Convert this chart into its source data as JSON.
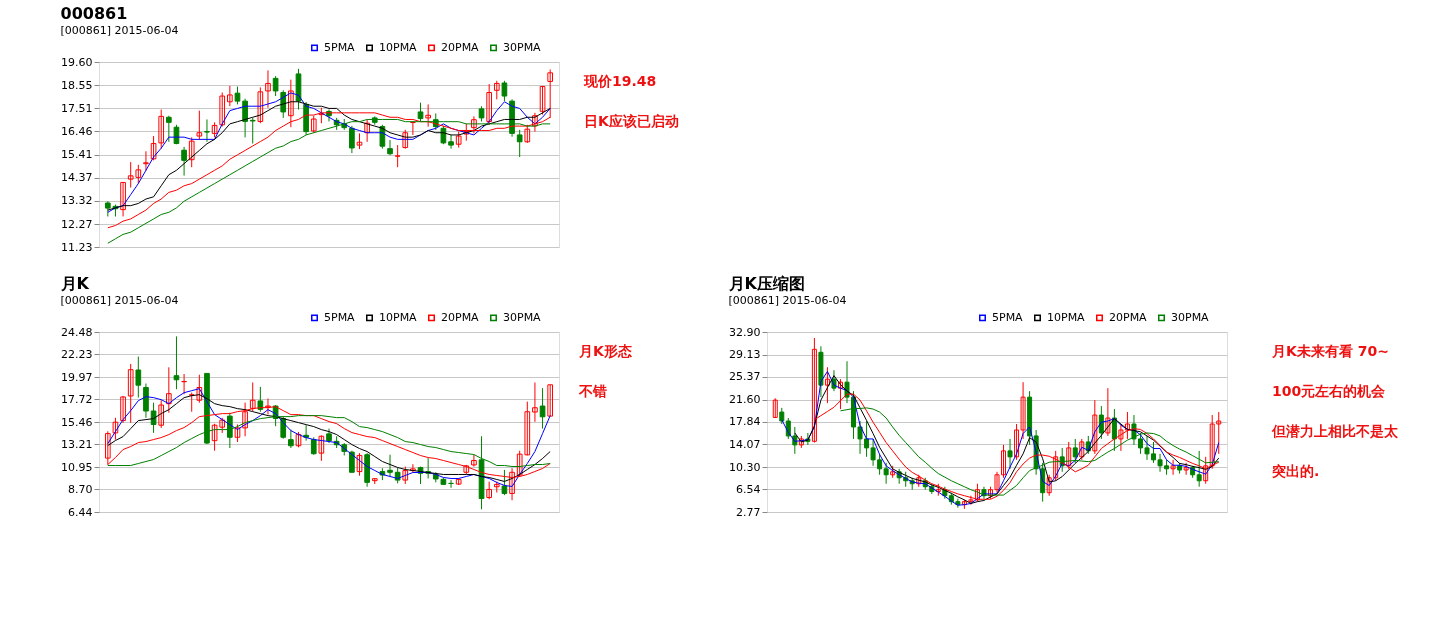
{
  "chart_data": [
    {
      "type": "candlestick",
      "title": "000861",
      "subtitle": "[000861] 2015-06-04",
      "annotations": [
        "现价19.48",
        "日K应该已启动"
      ],
      "categories": [
        null,
        null,
        null,
        null,
        null,
        null,
        null,
        null,
        null,
        null,
        null,
        null,
        null,
        null,
        null,
        null,
        null,
        null,
        null,
        null,
        null,
        null,
        null,
        null,
        null,
        null,
        null,
        null,
        null,
        null,
        null,
        null,
        null,
        null,
        null,
        null,
        null,
        null,
        null,
        null,
        null,
        null,
        null,
        null,
        null,
        null,
        null,
        null,
        null,
        null,
        null,
        null,
        null,
        null,
        null,
        null,
        null,
        null,
        null
      ],
      "ohlc": [
        [
          13.22,
          13.3,
          12.61,
          12.99
        ],
        [
          13.07,
          13.15,
          12.61,
          12.96
        ],
        [
          12.92,
          14.15,
          12.61,
          14.15
        ],
        [
          14.3,
          15.07,
          13.92,
          14.45
        ],
        [
          14.38,
          14.95,
          14.1,
          14.72
        ],
        [
          15.0,
          15.56,
          14.68,
          15.04
        ],
        [
          15.22,
          16.25,
          15.15,
          15.91
        ],
        [
          15.94,
          17.45,
          15.68,
          17.14
        ],
        [
          17.1,
          17.17,
          15.99,
          16.87
        ],
        [
          16.65,
          16.76,
          15.88,
          15.91
        ],
        [
          15.61,
          15.76,
          14.46,
          15.15
        ],
        [
          15.18,
          16.19,
          14.84,
          16.02
        ],
        [
          16.25,
          17.4,
          16.07,
          16.4
        ],
        [
          16.45,
          17.0,
          15.99,
          16.43
        ],
        [
          16.37,
          16.87,
          16.19,
          16.73
        ],
        [
          16.76,
          18.22,
          16.68,
          18.06
        ],
        [
          17.8,
          18.52,
          17.6,
          18.11
        ],
        [
          18.19,
          18.49,
          17.68,
          17.83
        ],
        [
          17.83,
          17.94,
          16.19,
          16.91
        ],
        [
          16.96,
          17.07,
          15.91,
          16.93
        ],
        [
          16.91,
          18.45,
          16.83,
          18.25
        ],
        [
          18.29,
          19.22,
          17.53,
          18.63
        ],
        [
          18.86,
          18.96,
          18.06,
          18.29
        ],
        [
          18.22,
          18.32,
          17.07,
          17.34
        ],
        [
          17.17,
          18.8,
          16.65,
          18.29
        ],
        [
          19.06,
          19.29,
          17.45,
          17.83
        ],
        [
          17.68,
          17.79,
          16.3,
          16.45
        ],
        [
          16.48,
          17.17,
          16.4,
          17.02
        ],
        [
          17.22,
          17.53,
          16.83,
          17.25
        ],
        [
          17.36,
          17.45,
          16.91,
          17.17
        ],
        [
          16.96,
          17.07,
          16.53,
          16.76
        ],
        [
          16.81,
          17.02,
          16.53,
          16.63
        ],
        [
          16.6,
          16.71,
          15.48,
          15.71
        ],
        [
          15.84,
          16.37,
          15.66,
          15.97
        ],
        [
          16.4,
          16.99,
          15.99,
          16.83
        ],
        [
          17.07,
          17.14,
          16.76,
          16.87
        ],
        [
          16.68,
          16.76,
          15.68,
          15.79
        ],
        [
          15.68,
          16.07,
          15.38,
          15.45
        ],
        [
          15.34,
          15.84,
          14.84,
          15.35
        ],
        [
          15.73,
          16.53,
          15.68,
          16.4
        ],
        [
          16.86,
          16.91,
          16.3,
          16.87
        ],
        [
          17.34,
          17.76,
          16.91,
          17.04
        ],
        [
          17.07,
          17.68,
          16.68,
          17.19
        ],
        [
          16.99,
          17.27,
          16.53,
          16.68
        ],
        [
          16.6,
          16.71,
          15.88,
          15.94
        ],
        [
          15.99,
          16.3,
          15.68,
          15.84
        ],
        [
          15.88,
          16.45,
          15.73,
          16.25
        ],
        [
          16.34,
          16.81,
          16.04,
          16.45
        ],
        [
          16.63,
          17.14,
          16.37,
          16.99
        ],
        [
          17.48,
          17.6,
          16.91,
          17.07
        ],
        [
          16.91,
          18.6,
          16.76,
          18.22
        ],
        [
          18.32,
          18.75,
          17.91,
          18.63
        ],
        [
          18.65,
          18.75,
          17.83,
          18.06
        ],
        [
          17.83,
          17.91,
          16.22,
          16.37
        ],
        [
          16.3,
          16.53,
          15.3,
          15.99
        ],
        [
          15.99,
          16.76,
          15.94,
          16.56
        ],
        [
          16.71,
          17.3,
          16.45,
          17.17
        ],
        [
          17.37,
          18.52,
          17.22,
          18.49
        ],
        [
          18.72,
          19.26,
          17.07,
          19.11
        ]
      ],
      "series": [
        {
          "name": "5PMA",
          "type": "line",
          "color": "#0000ff",
          "values": [
            12.8,
            13.0,
            13.1,
            13.6,
            14.1,
            14.7,
            15.3,
            15.7,
            16.2,
            16.2,
            16.2,
            16.1,
            16.1,
            16.1,
            16.1,
            16.8,
            17.4,
            17.5,
            17.6,
            17.6,
            17.6,
            17.7,
            17.8,
            18.0,
            18.2,
            18.1,
            17.6,
            17.5,
            17.3,
            17.1,
            16.9,
            16.8,
            16.6,
            16.5,
            16.4,
            16.4,
            16.4,
            16.2,
            16.1,
            16.1,
            16.1,
            16.3,
            16.5,
            16.6,
            16.8,
            16.6,
            16.5,
            16.4,
            16.3,
            16.6,
            16.9,
            17.4,
            17.8,
            17.6,
            17.5,
            17.1,
            16.8,
            17.1,
            17.5
          ]
        },
        {
          "name": "10PMA",
          "type": "line",
          "color": "#000000",
          "values": [
            12.9,
            13.0,
            13.1,
            13.1,
            13.2,
            13.4,
            13.5,
            14.0,
            14.5,
            14.7,
            15.0,
            15.3,
            15.6,
            15.9,
            16.1,
            16.4,
            16.8,
            16.9,
            17.0,
            17.1,
            17.2,
            17.4,
            17.6,
            17.7,
            17.8,
            17.8,
            17.7,
            17.6,
            17.6,
            17.5,
            17.5,
            17.2,
            17.0,
            16.9,
            16.8,
            16.7,
            16.6,
            16.4,
            16.3,
            16.2,
            16.2,
            16.3,
            16.5,
            16.4,
            16.4,
            16.3,
            16.3,
            16.4,
            16.5,
            16.7,
            16.8,
            16.9,
            17.0,
            17.0,
            17.0,
            17.1,
            17.1,
            17.3,
            17.5
          ]
        },
        {
          "name": "20PMA",
          "type": "line",
          "color": "#ff0000",
          "values": [
            12.1,
            12.2,
            12.4,
            12.5,
            12.7,
            12.9,
            13.2,
            13.4,
            13.7,
            13.8,
            14.0,
            14.1,
            14.3,
            14.5,
            14.7,
            14.9,
            15.2,
            15.4,
            15.6,
            15.8,
            16.0,
            16.2,
            16.5,
            16.7,
            16.9,
            17.0,
            17.2,
            17.2,
            17.3,
            17.3,
            17.3,
            17.3,
            17.3,
            17.3,
            17.3,
            17.3,
            17.2,
            17.1,
            17.1,
            17.0,
            17.0,
            16.9,
            16.9,
            16.8,
            16.7,
            16.6,
            16.5,
            16.5,
            16.5,
            16.5,
            16.5,
            16.6,
            16.6,
            16.7,
            16.7,
            16.7,
            16.8,
            16.9,
            17.1
          ]
        },
        {
          "name": "30PMA",
          "type": "line",
          "color": "#008000",
          "values": [
            11.4,
            11.6,
            11.8,
            11.9,
            12.1,
            12.3,
            12.5,
            12.7,
            12.8,
            13.0,
            13.3,
            13.5,
            13.7,
            13.9,
            14.1,
            14.3,
            14.5,
            14.7,
            14.9,
            15.1,
            15.3,
            15.5,
            15.7,
            15.8,
            16.0,
            16.1,
            16.3,
            16.4,
            16.5,
            16.6,
            16.7,
            16.8,
            16.9,
            16.9,
            17.0,
            17.0,
            17.0,
            17.0,
            17.0,
            16.9,
            16.9,
            16.9,
            16.9,
            16.9,
            16.9,
            16.9,
            16.9,
            16.8,
            16.8,
            16.8,
            16.8,
            16.8,
            16.8,
            16.8,
            16.8,
            16.7,
            16.7,
            16.8,
            16.8
          ]
        }
      ],
      "ylim": [
        11.23,
        19.6
      ],
      "yticks": [
        11.23,
        12.27,
        13.32,
        14.37,
        15.41,
        16.46,
        17.51,
        18.55,
        {
          "value": 19.6,
          "label": "19.60"
        }
      ],
      "grid": "y",
      "legend": "top right",
      "tick_labels": "y"
    },
    {
      "type": "candlestick",
      "title": "月K",
      "subtitle": "[000861] 2015-06-04",
      "annotations": [
        "月K形态",
        "不错"
      ],
      "categories": [
        null,
        null,
        null,
        null,
        null,
        null,
        null,
        null,
        null,
        null,
        null,
        null,
        null,
        null,
        null,
        null,
        null,
        null,
        null,
        null,
        null,
        null,
        null,
        null,
        null,
        null,
        null,
        null,
        null,
        null,
        null,
        null,
        null,
        null,
        null,
        null,
        null,
        null,
        null,
        null,
        null,
        null,
        null,
        null,
        null,
        null,
        null,
        null,
        null,
        null,
        null,
        null,
        null,
        null,
        null,
        null,
        null,
        null,
        null
      ],
      "ohlc": [
        [
          11.84,
          14.53,
          11.17,
          14.3
        ],
        [
          14.37,
          15.88,
          13.69,
          15.44
        ],
        [
          15.61,
          18.07,
          15.38,
          17.97
        ],
        [
          18.07,
          21.28,
          15.38,
          20.7
        ],
        [
          20.67,
          22.02,
          17.91,
          19.15
        ],
        [
          18.92,
          19.32,
          15.88,
          16.56
        ],
        [
          16.56,
          17.4,
          14.37,
          15.21
        ],
        [
          15.14,
          17.64,
          14.87,
          17.16
        ],
        [
          17.3,
          20.94,
          16.39,
          18.3
        ],
        [
          20.1,
          24.04,
          18.75,
          19.69
        ],
        [
          19.5,
          20.27,
          18.24,
          19.52
        ],
        [
          18.16,
          18.41,
          16.49,
          18.18
        ],
        [
          17.64,
          20.2,
          17.4,
          18.92
        ],
        [
          20.33,
          20.33,
          13.25,
          13.35
        ],
        [
          13.59,
          15.28,
          12.58,
          15.14
        ],
        [
          14.94,
          15.88,
          14.37,
          15.65
        ],
        [
          16.05,
          16.39,
          12.85,
          13.93
        ],
        [
          13.93,
          15.21,
          13.46,
          14.87
        ],
        [
          14.87,
          17.4,
          14.03,
          16.49
        ],
        [
          16.83,
          19.42,
          16.56,
          17.64
        ],
        [
          17.57,
          18.98,
          16.49,
          16.73
        ],
        [
          16.96,
          17.81,
          16.22,
          17.06
        ],
        [
          17.06,
          17.16,
          15.04,
          15.81
        ],
        [
          15.81,
          16.05,
          13.79,
          13.93
        ],
        [
          13.69,
          14.7,
          12.85,
          13.08
        ],
        [
          13.08,
          14.47,
          12.92,
          14.2
        ],
        [
          14.13,
          15.14,
          13.59,
          13.93
        ],
        [
          13.69,
          13.93,
          12.18,
          12.28
        ],
        [
          12.34,
          14.13,
          11.57,
          14.03
        ],
        [
          14.27,
          14.8,
          13.35,
          13.59
        ],
        [
          13.52,
          14.03,
          12.85,
          13.18
        ],
        [
          13.18,
          13.35,
          12.11,
          12.51
        ],
        [
          12.44,
          12.58,
          10.42,
          10.42
        ],
        [
          10.49,
          12.34,
          10.08,
          12.11
        ],
        [
          12.18,
          12.34,
          8.97,
          9.41
        ],
        [
          9.58,
          9.81,
          9.24,
          9.78
        ],
        [
          10.49,
          10.83,
          9.64,
          10.15
        ],
        [
          10.62,
          12.18,
          9.98,
          10.42
        ],
        [
          10.42,
          10.89,
          9.31,
          9.64
        ],
        [
          9.64,
          10.99,
          9.24,
          10.59
        ],
        [
          10.59,
          11.23,
          10.42,
          10.76
        ],
        [
          10.89,
          10.99,
          9.24,
          10.32
        ],
        [
          10.49,
          11.84,
          9.81,
          10.32
        ],
        [
          10.22,
          10.42,
          9.41,
          9.75
        ],
        [
          9.71,
          9.88,
          9.21,
          9.21
        ],
        [
          9.31,
          9.64,
          8.87,
          9.3
        ],
        [
          9.24,
          9.81,
          9.14,
          9.71
        ],
        [
          10.42,
          11.16,
          10.22,
          11.06
        ],
        [
          11.16,
          12.18,
          10.99,
          11.6
        ],
        [
          11.67,
          14.03,
          6.71,
          7.79
        ],
        [
          7.89,
          9.48,
          7.72,
          8.7
        ],
        [
          8.97,
          9.48,
          8.4,
          9.21
        ],
        [
          9.04,
          10.66,
          8.13,
          8.3
        ],
        [
          8.3,
          10.83,
          7.62,
          10.42
        ],
        [
          10.15,
          12.58,
          9.98,
          12.24
        ],
        [
          12.17,
          17.5,
          12.11,
          16.49
        ],
        [
          16.46,
          19.42,
          15.48,
          16.89
        ],
        [
          17.06,
          18.85,
          14.8,
          15.98
        ],
        [
          16.05,
          19.19,
          16.05,
          19.19
        ]
      ],
      "series": [
        {
          "name": "5PMA",
          "type": "line",
          "color": "#0000ff",
          "values": [
            13.3,
            14.5,
            15.7,
            16.6,
            17.6,
            18.0,
            17.9,
            17.7,
            17.3,
            17.9,
            18.4,
            18.6,
            18.8,
            17.5,
            16.2,
            15.7,
            15.2,
            14.7,
            15.2,
            15.6,
            16.1,
            16.7,
            16.3,
            15.4,
            14.6,
            14.2,
            13.9,
            13.7,
            13.6,
            13.5,
            13.4,
            12.8,
            12.2,
            11.6,
            11.0,
            10.6,
            10.2,
            10.0,
            9.8,
            10.1,
            10.4,
            10.4,
            10.4,
            10.2,
            9.9,
            9.8,
            9.8,
            10.0,
            10.2,
            10.0,
            9.8,
            9.4,
            9.1,
            9.0,
            10.2,
            11.3,
            12.5,
            14.3,
            16.1
          ]
        },
        {
          "name": "10PMA",
          "type": "line",
          "color": "#000000",
          "values": [
            13.1,
            13.6,
            14.0,
            14.8,
            15.6,
            15.7,
            15.8,
            16.3,
            16.7,
            17.3,
            17.9,
            18.1,
            18.2,
            17.8,
            17.3,
            17.1,
            17.0,
            16.8,
            16.7,
            16.5,
            16.3,
            16.1,
            16.0,
            15.8,
            15.6,
            15.4,
            15.2,
            15.0,
            14.7,
            14.5,
            14.2,
            13.7,
            13.2,
            12.8,
            12.5,
            12.0,
            11.5,
            11.2,
            10.9,
            10.7,
            10.6,
            10.5,
            10.4,
            10.3,
            10.2,
            10.2,
            10.2,
            10.2,
            10.2,
            10.0,
            9.9,
            9.7,
            9.5,
            9.8,
            10.2,
            10.7,
            11.2,
            11.8,
            12.5
          ]
        },
        {
          "name": "20PMA",
          "type": "line",
          "color": "#ff0000",
          "values": [
            11.2,
            11.9,
            12.7,
            13.0,
            13.4,
            13.5,
            13.7,
            13.9,
            14.2,
            14.6,
            14.9,
            15.4,
            16.0,
            16.1,
            16.2,
            16.3,
            16.3,
            16.5,
            16.6,
            16.8,
            16.9,
            16.9,
            17.0,
            16.6,
            16.2,
            16.2,
            16.1,
            16.1,
            15.8,
            15.5,
            15.3,
            14.8,
            14.4,
            14.2,
            14.0,
            13.9,
            13.6,
            13.3,
            13.0,
            12.7,
            12.4,
            12.1,
            11.9,
            11.8,
            11.6,
            11.4,
            11.2,
            11.0,
            10.7,
            10.4,
            10.2,
            10.1,
            10.0,
            9.9,
            10.0,
            10.2,
            10.5,
            10.8,
            11.3
          ]
        },
        {
          "name": "30PMA",
          "type": "line",
          "color": "#008000",
          "values": [
            11.1,
            11.1,
            11.1,
            11.1,
            11.3,
            11.5,
            11.7,
            12.1,
            12.5,
            12.9,
            13.4,
            13.8,
            14.2,
            14.5,
            14.7,
            14.7,
            14.7,
            15.0,
            15.4,
            15.6,
            15.8,
            15.9,
            16.0,
            16.0,
            16.0,
            16.1,
            16.1,
            16.1,
            16.1,
            16.0,
            15.9,
            15.9,
            15.5,
            15.0,
            14.9,
            14.7,
            14.5,
            14.2,
            13.9,
            13.5,
            13.4,
            13.2,
            13.0,
            12.9,
            12.7,
            12.5,
            12.4,
            12.3,
            12.2,
            11.8,
            11.5,
            11.1,
            11.1,
            11.0,
            11.0,
            11.1,
            11.2,
            11.2,
            11.3
          ]
        }
      ],
      "ylim": [
        6.44,
        24.48
      ],
      "yticks": [
        6.44,
        {
          "value": 8.7,
          "label": "8.70"
        },
        10.95,
        13.21,
        15.46,
        17.72,
        19.97,
        22.23,
        24.48
      ],
      "grid": "y",
      "legend": "top right",
      "tick_labels": "y"
    },
    {
      "type": "candlestick",
      "title": "月K压缩图",
      "subtitle": "[000861] 2015-06-04",
      "annotations": [
        "月K未来有看  70~",
        "100元左右的机会",
        "但潜力上相比不是太",
        "突出的."
      ],
      "categories": [
        null,
        null,
        null,
        null,
        null,
        null,
        null,
        null,
        null,
        null,
        null,
        null,
        null,
        null,
        null,
        null,
        null,
        null,
        null,
        null,
        null,
        null,
        null,
        null,
        null,
        null,
        null,
        null,
        null,
        null,
        null,
        null,
        null,
        null,
        null,
        null,
        null,
        null,
        null,
        null,
        null,
        null,
        null,
        null,
        null,
        null,
        null,
        null,
        null,
        null,
        null,
        null,
        null,
        null,
        null,
        null,
        null,
        null,
        null,
        null,
        null,
        null,
        null,
        null,
        null,
        null,
        null,
        null,
        null
      ],
      "ohlc": [
        [
          18.6,
          21.8,
          18.5,
          21.5
        ],
        [
          19.5,
          20.2,
          17.5,
          18.0
        ],
        [
          18.0,
          18.5,
          15.0,
          15.5
        ],
        [
          15.5,
          17.0,
          12.5,
          14.0
        ],
        [
          14.0,
          15.5,
          13.5,
          15.0
        ],
        [
          15.0,
          16.0,
          14.0,
          14.6
        ],
        [
          14.6,
          31.9,
          14.4,
          30.0
        ],
        [
          29.5,
          30.5,
          22.0,
          24.0
        ],
        [
          24.0,
          27.0,
          21.0,
          25.0
        ],
        [
          25.0,
          26.5,
          23.0,
          23.5
        ],
        [
          23.5,
          25.0,
          20.0,
          24.5
        ],
        [
          24.5,
          28.0,
          21.0,
          22.0
        ],
        [
          22.0,
          23.0,
          15.0,
          17.0
        ],
        [
          17.0,
          18.0,
          12.5,
          15.0
        ],
        [
          15.0,
          18.0,
          12.0,
          13.5
        ],
        [
          13.5,
          15.0,
          10.5,
          11.5
        ],
        [
          11.5,
          12.5,
          9.0,
          10.0
        ],
        [
          10.0,
          11.0,
          7.5,
          9.0
        ],
        [
          9.0,
          10.5,
          8.5,
          9.5
        ],
        [
          9.5,
          10.0,
          7.5,
          8.5
        ],
        [
          8.5,
          9.5,
          7.0,
          8.0
        ],
        [
          8.0,
          8.5,
          6.5,
          7.5
        ],
        [
          7.5,
          9.0,
          7.0,
          8.5
        ],
        [
          8.0,
          8.5,
          6.5,
          7.0
        ],
        [
          7.0,
          7.5,
          5.8,
          6.2
        ],
        [
          6.2,
          7.5,
          5.5,
          6.5
        ],
        [
          6.5,
          7.0,
          5.0,
          5.5
        ],
        [
          5.5,
          6.0,
          4.0,
          4.5
        ],
        [
          4.5,
          5.0,
          3.5,
          4.0
        ],
        [
          4.0,
          4.8,
          3.3,
          4.5
        ],
        [
          4.5,
          5.5,
          4.0,
          4.8
        ],
        [
          4.8,
          7.5,
          4.5,
          6.5
        ],
        [
          6.5,
          7.0,
          5.0,
          5.5
        ],
        [
          5.5,
          7.0,
          5.0,
          6.5
        ],
        [
          6.5,
          9.5,
          6.0,
          9.0
        ],
        [
          9.0,
          14.0,
          8.5,
          13.0
        ],
        [
          13.0,
          15.0,
          10.0,
          12.0
        ],
        [
          12.0,
          17.5,
          11.5,
          16.5
        ],
        [
          16.5,
          24.5,
          15.0,
          22.0
        ],
        [
          22.0,
          23.0,
          14.0,
          15.5
        ],
        [
          15.5,
          16.5,
          9.0,
          10.0
        ],
        [
          10.0,
          11.0,
          4.5,
          6.0
        ],
        [
          6.0,
          9.0,
          5.5,
          8.5
        ],
        [
          8.5,
          13.0,
          8.0,
          12.0
        ],
        [
          12.0,
          13.5,
          9.5,
          10.5
        ],
        [
          10.5,
          14.5,
          10.0,
          13.5
        ],
        [
          13.5,
          15.0,
          11.0,
          12.0
        ],
        [
          12.0,
          15.0,
          11.5,
          14.5
        ],
        [
          14.5,
          15.5,
          12.5,
          13.0
        ],
        [
          13.0,
          21.5,
          12.5,
          19.0
        ],
        [
          19.0,
          20.5,
          15.0,
          16.0
        ],
        [
          16.0,
          23.5,
          15.5,
          18.5
        ],
        [
          18.5,
          20.0,
          13.0,
          15.0
        ],
        [
          15.0,
          17.5,
          13.0,
          16.5
        ],
        [
          16.5,
          19.5,
          15.0,
          17.5
        ],
        [
          17.5,
          19.0,
          14.0,
          15.0
        ],
        [
          15.0,
          16.0,
          12.5,
          13.5
        ],
        [
          13.5,
          15.5,
          11.5,
          12.5
        ],
        [
          12.5,
          14.5,
          11.0,
          11.5
        ],
        [
          11.5,
          12.5,
          9.5,
          10.5
        ],
        [
          10.5,
          11.5,
          9.0,
          10.0
        ],
        [
          10.0,
          11.5,
          9.0,
          10.5
        ],
        [
          10.5,
          11.0,
          9.2,
          9.8
        ],
        [
          9.8,
          11.0,
          9.0,
          10.2
        ],
        [
          10.2,
          10.5,
          8.5,
          9.0
        ],
        [
          9.0,
          13.0,
          7.0,
          8.0
        ],
        [
          8.0,
          12.0,
          7.5,
          10.5
        ],
        [
          10.5,
          19.0,
          10.0,
          17.5
        ],
        [
          17.5,
          19.5,
          12.5,
          18.0
        ]
      ],
      "series": [
        {
          "name": "5PMA",
          "type": "line",
          "color": "#0000ff",
          "values": [
            null,
            18.2,
            16.1,
            14.6,
            14.7,
            14.9,
            17.0,
            24.6,
            26.3,
            24.0,
            23.5,
            23.1,
            22.0,
            17.3,
            15.0,
            15.0,
            12.4,
            10.5,
            9.7,
            9.0,
            8.4,
            7.8,
            7.6,
            7.5,
            6.8,
            6.1,
            5.4,
            4.6,
            3.9,
            4.0,
            4.2,
            5.0,
            5.8,
            5.8,
            5.8,
            8.0,
            10.3,
            12.5,
            15.9,
            17.0,
            12.8,
            7.9,
            7.2,
            8.8,
            10.9,
            10.5,
            11.4,
            13.6,
            13.1,
            16.2,
            17.8,
            18.0,
            18.4,
            17.3,
            16.6,
            16.5,
            15.7,
            14.2,
            13.4,
            13.4,
            11.5,
            10.6,
            10.6,
            10.4,
            9.9,
            9.5,
            9.1,
            10.7,
            14.4
          ]
        },
        {
          "name": "10PMA",
          "type": "line",
          "color": "#000000",
          "values": [
            null,
            null,
            null,
            16.0,
            14.5,
            14.8,
            17.2,
            21.5,
            23.6,
            25.6,
            24.1,
            23.0,
            22.3,
            20.2,
            18.1,
            15.9,
            13.6,
            11.8,
            10.0,
            9.4,
            8.9,
            8.4,
            8.1,
            7.8,
            7.3,
            6.9,
            6.4,
            5.9,
            5.3,
            4.8,
            4.2,
            4.5,
            4.7,
            5.3,
            5.8,
            7.2,
            8.6,
            10.6,
            12.5,
            15.2,
            14.5,
            11.7,
            7.8,
            8.0,
            8.7,
            9.8,
            10.9,
            11.9,
            12.9,
            14.3,
            15.6,
            17.0,
            18.4,
            17.5,
            16.6,
            16.4,
            16.2,
            15.5,
            14.8,
            13.8,
            12.8,
            11.9,
            10.9,
            10.7,
            10.4,
            10.2,
            9.9,
            10.4,
            11.8
          ]
        },
        {
          "name": "20PMA",
          "type": "line",
          "color": "#ff0000",
          "values": [
            null,
            null,
            null,
            null,
            null,
            null,
            18.2,
            18.9,
            19.6,
            20.3,
            21.4,
            22.5,
            22.5,
            21.5,
            19.7,
            17.8,
            16.1,
            14.4,
            13.0,
            11.6,
            10.3,
            9.4,
            8.8,
            8.1,
            7.5,
            7.1,
            6.6,
            6.2,
            5.8,
            5.5,
            5.2,
            4.9,
            4.9,
            4.9,
            5.4,
            6.4,
            7.7,
            9.5,
            10.8,
            11.8,
            12.3,
            12.3,
            12.1,
            11.6,
            11.0,
            10.3,
            9.5,
            10.0,
            10.6,
            12.0,
            13.4,
            14.2,
            15.0,
            15.7,
            16.4,
            16.7,
            16.6,
            15.9,
            15.0,
            13.9,
            12.8,
            12.3,
            11.9,
            11.4,
            10.9,
            10.5,
            10.0,
            10.6,
            11.1
          ]
        },
        {
          "name": "30PMA",
          "type": "line",
          "color": "#008000",
          "values": [
            null,
            null,
            null,
            null,
            null,
            null,
            null,
            null,
            null,
            null,
            19.7,
            19.9,
            20.1,
            20.1,
            20.2,
            20.0,
            19.5,
            18.5,
            17.0,
            15.6,
            14.4,
            13.2,
            12.0,
            11.1,
            10.1,
            9.2,
            8.6,
            8.0,
            7.5,
            7.0,
            6.5,
            6.1,
            5.6,
            5.6,
            5.6,
            5.6,
            6.4,
            7.2,
            8.5,
            9.7,
            10.2,
            10.6,
            11.1,
            11.2,
            11.2,
            11.3,
            11.4,
            11.3,
            11.2,
            11.4,
            12.1,
            12.8,
            13.4,
            14.1,
            14.8,
            15.3,
            15.8,
            16.0,
            15.9,
            15.5,
            14.6,
            13.9,
            13.3,
            12.8,
            12.2,
            11.6,
            11.0,
            11.1,
            11.2
          ]
        }
      ],
      "ylim": [
        2.77,
        32.9
      ],
      "yticks": [
        2.77,
        6.54,
        {
          "value": 10.3,
          "label": "10.30"
        },
        14.07,
        17.84,
        {
          "value": 21.6,
          "label": "21.60"
        },
        25.37,
        29.13,
        {
          "value": 32.9,
          "label": "32.90"
        }
      ],
      "grid": "y",
      "legend": "top right",
      "tick_labels": "y"
    }
  ]
}
